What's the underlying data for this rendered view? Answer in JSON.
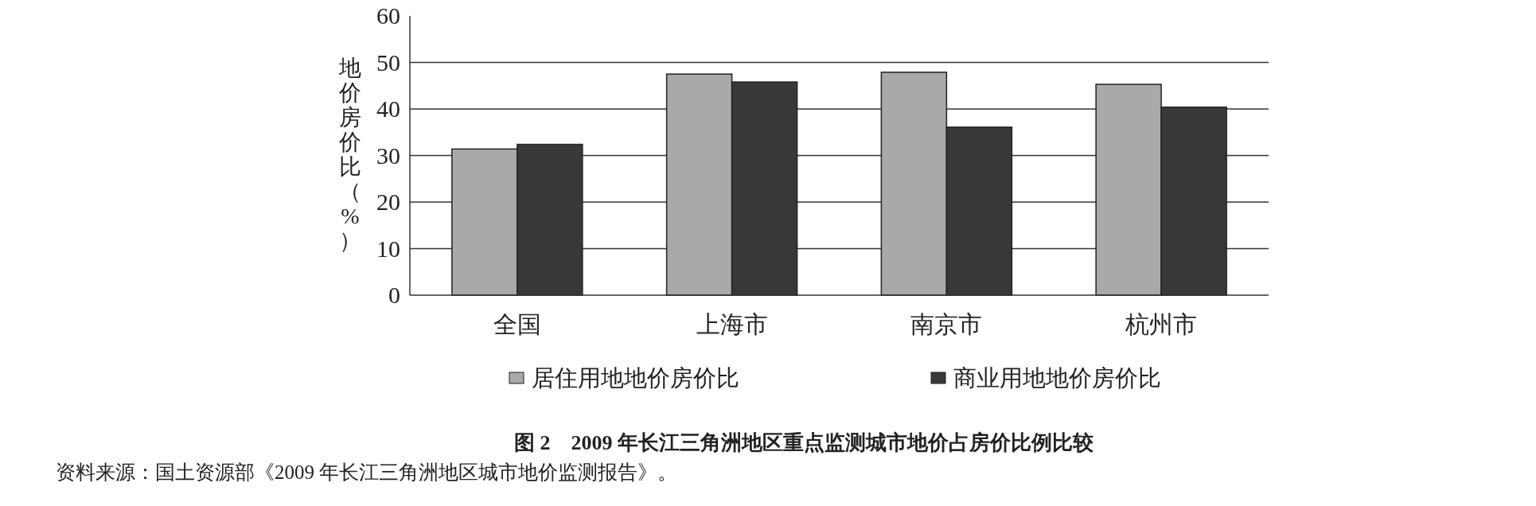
{
  "chart_data": {
    "type": "bar",
    "title": "图 2　2009 年长江三角洲地区重点监测城市地价占房价比例比较",
    "ylabel": "地价房价比（%）",
    "categories": [
      "全国",
      "上海市",
      "南京市",
      "杭州市"
    ],
    "series": [
      {
        "name": "居住用地地价房价比",
        "color": "#a9a9a9",
        "values": [
          31.4,
          47.5,
          47.9,
          45.3
        ]
      },
      {
        "name": "商业用地地价房价比",
        "color": "#383838",
        "values": [
          32.4,
          45.8,
          36.1,
          40.4
        ]
      }
    ],
    "ylim": [
      0,
      60
    ],
    "yticks": [
      0,
      10,
      20,
      30,
      40,
      50,
      60
    ],
    "grid": "y",
    "legend": "bottom",
    "annotations": [
      "资料来源：国土资源部《2009 年长江三角洲地区城市地价监测报告》。"
    ]
  }
}
